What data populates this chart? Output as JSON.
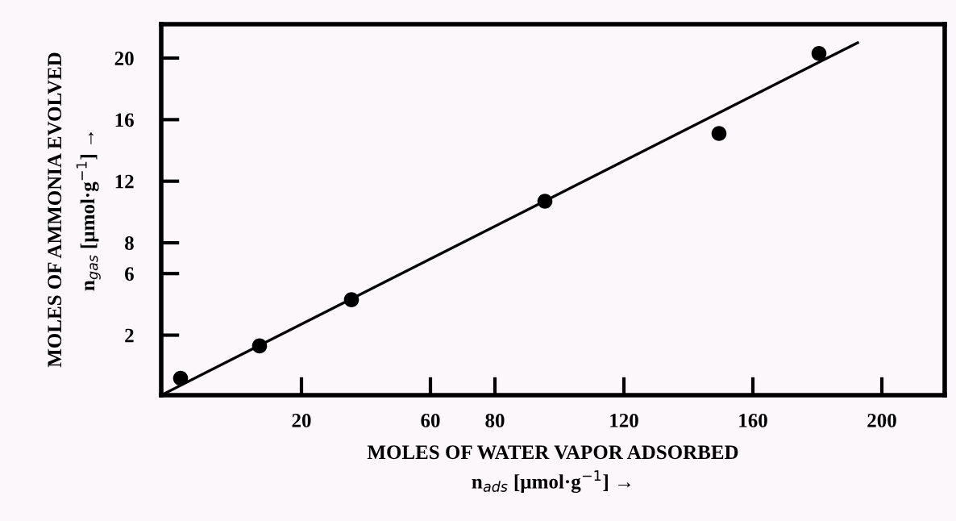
{
  "chart_data": {
    "type": "scatter",
    "xlabel": "MOLES OF WATER VAPOR ADSORBED\nn$_{ads}$ [µmol·g$^{−1}$] →",
    "ylabel": "MOLES OF AMMONIA EVOLVED\nn$_{gas}$ [µmol·g$^{−1}$] →",
    "series": [
      {
        "color": "#000000",
        "marker": "circle",
        "x": [
          -17.5,
          7,
          35.5,
          95.5,
          149.5,
          180.5
        ],
        "values": [
          -0.8,
          1.3,
          4.3,
          10.7,
          15.1,
          20.3
        ]
      },
      {
        "type": "line",
        "color": "#000000",
        "x": [
          -23.5,
          192.5
        ],
        "values": [
          -1.9,
          21.0
        ]
      }
    ],
    "xlim": [
      -23.5,
      219.5
    ],
    "ylim": [
      -1.9,
      22.2
    ],
    "xticks": [
      20,
      60,
      80,
      120,
      160,
      200
    ],
    "yticks": [
      2,
      6,
      8,
      12,
      16,
      20
    ],
    "grid": false
  }
}
